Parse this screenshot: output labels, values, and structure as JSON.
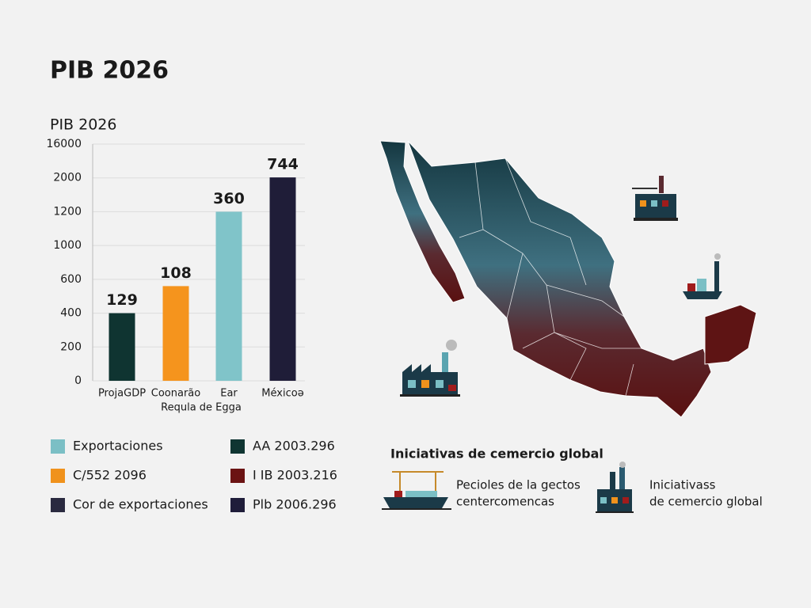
{
  "title": "PIB 2026",
  "chart_data": {
    "type": "bar",
    "title": "PIB 2026",
    "categories": [
      "ProjaGDP",
      "Coonarão",
      "Ear",
      "Méxicoə"
    ],
    "values": [
      400,
      560,
      1200,
      2200
    ],
    "colors": [
      "#0f3431",
      "#f5941d",
      "#80c4c9",
      "#1f1d38"
    ],
    "annotations": [
      "129",
      "108",
      "360",
      "744"
    ],
    "annotation_colors": [
      "#0f3431",
      "#f5941d",
      "#80c4c9",
      "#1f1d38"
    ],
    "x_note": "Requla de Egga",
    "ylim": [
      0,
      16000
    ],
    "yticks": [
      0,
      200,
      400,
      600,
      1000,
      1200,
      2000,
      16000
    ],
    "scale": "tick-spaced",
    "grid": true
  },
  "legend": {
    "items": [
      {
        "label": "Exportaciones",
        "color": "#7bbfc5"
      },
      {
        "label": "AA 2003.296",
        "color": "#0f3532"
      },
      {
        "label": "C/552 2096",
        "color": "#f0921c"
      },
      {
        "label": "I IB 2003.216",
        "color": "#6b1313"
      },
      {
        "label": "Cor de exportaciones",
        "color": "#2a2a40"
      },
      {
        "label": "Plb 2006.296",
        "color": "#1f1d3a"
      }
    ]
  },
  "map_panel": {
    "title": "Iniciativas de cemercio global",
    "items": [
      {
        "lines": [
          "Pecioles de la gectos",
          "centercomencas"
        ]
      },
      {
        "lines": [
          "Iniciativass",
          "de cemercio global"
        ]
      }
    ]
  }
}
